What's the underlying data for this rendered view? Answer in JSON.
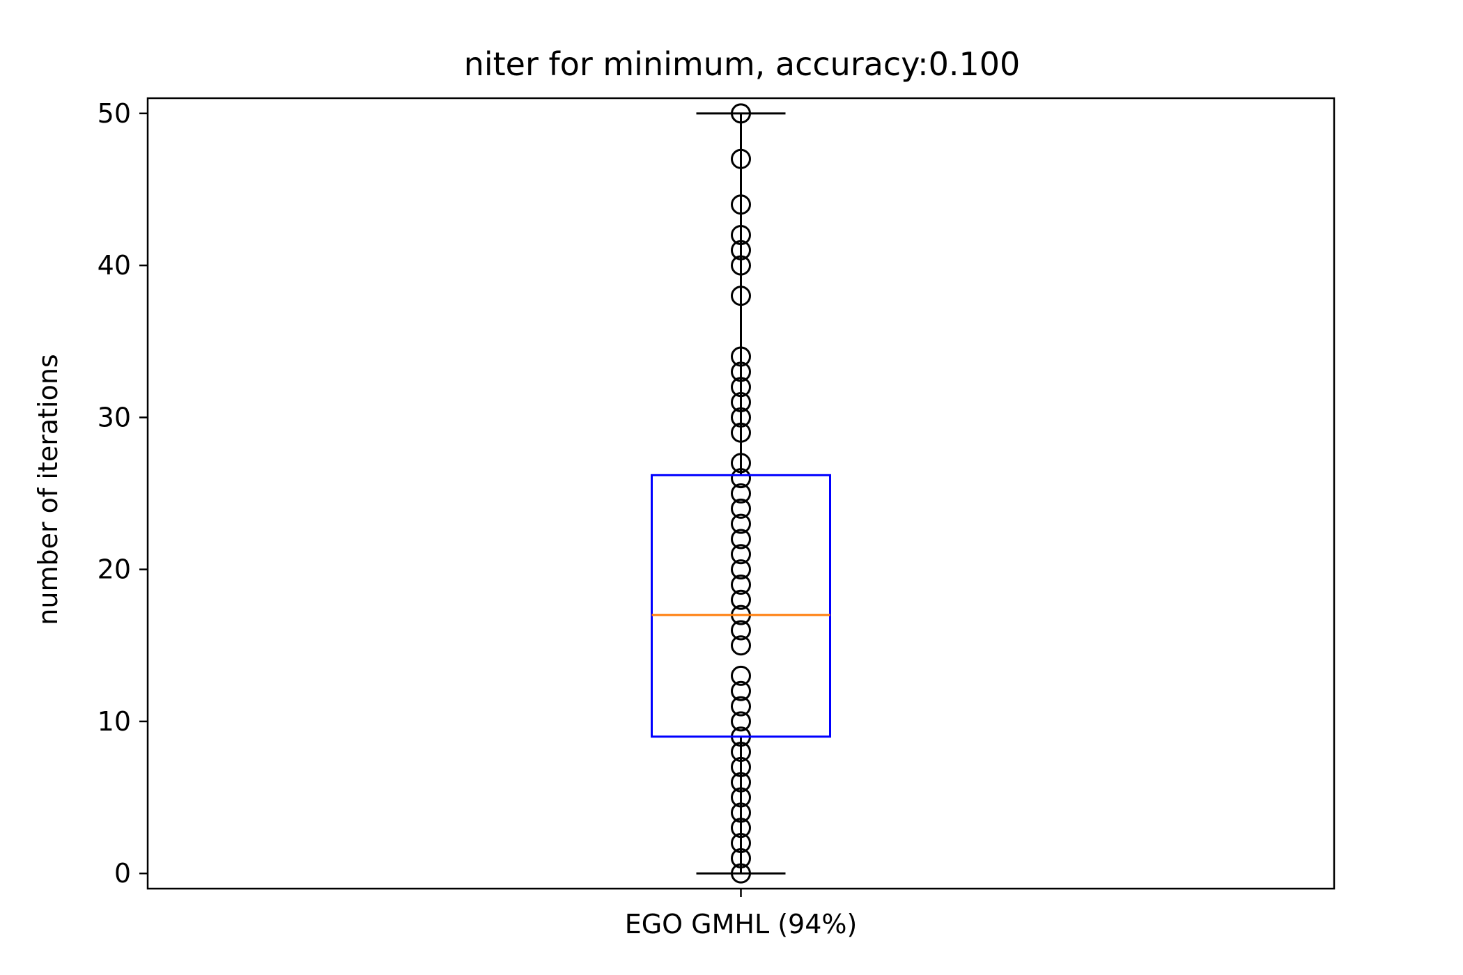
{
  "chart_data": {
    "type": "box",
    "title": "niter for minimum, accuracy:0.100",
    "xlabel": "",
    "ylabel": "number of iterations",
    "categories": [
      "EGO GMHL (94%)"
    ],
    "ylim": [
      -1,
      51
    ],
    "yticks": [
      0,
      10,
      20,
      30,
      40,
      50
    ],
    "grid": false,
    "box": {
      "category": "EGO GMHL (94%)",
      "whisker_low": 0,
      "q1": 9,
      "median": 17,
      "q3": 26.2,
      "whisker_high": 50
    },
    "points": [
      0,
      1,
      2,
      3,
      4,
      5,
      6,
      7,
      8,
      9,
      10,
      11,
      12,
      13,
      15,
      16,
      17,
      18,
      19,
      20,
      21,
      22,
      23,
      24,
      25,
      26,
      27,
      29,
      30,
      31,
      32,
      33,
      34,
      38,
      40,
      41,
      42,
      44,
      47,
      50
    ],
    "colors": {
      "box": "#0000ff",
      "median": "#ff7f0e",
      "whisker": "#000000",
      "points": "#000000"
    }
  }
}
